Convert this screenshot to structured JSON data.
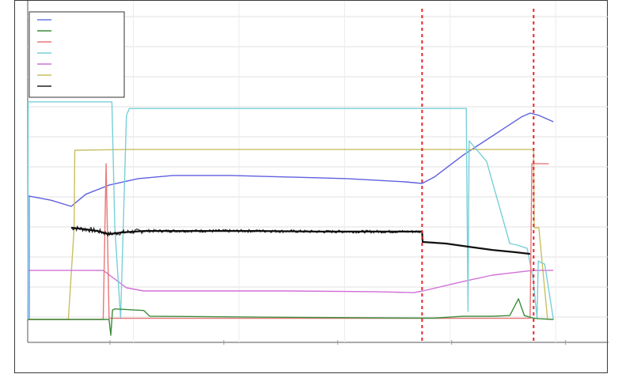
{
  "chart_data": {
    "type": "line",
    "title": "",
    "xlabel": "",
    "ylabel": "",
    "xlim": [
      0,
      100
    ],
    "ylim": [
      0,
      100
    ],
    "grid": true,
    "legend": {
      "placement": "top-left",
      "entries": [
        {
          "color": "#6a78e8",
          "label": ""
        },
        {
          "color": "#3c8c3c",
          "label": ""
        },
        {
          "color": "#e87878",
          "label": ""
        },
        {
          "color": "#78d0d8",
          "label": ""
        },
        {
          "color": "#d070d8",
          "label": ""
        },
        {
          "color": "#c8c060",
          "label": ""
        },
        {
          "color": "#202020",
          "label": ""
        }
      ]
    },
    "vlines": [
      {
        "x": 67.9,
        "color": "#e8262a",
        "style": "dashed"
      },
      {
        "x": 87.1,
        "color": "#e8262a",
        "style": "dashed"
      }
    ],
    "series": [
      {
        "color": "#5f5fe0",
        "x": [
          0,
          4,
          7.5,
          10,
          14,
          19,
          25,
          35,
          45,
          55,
          65,
          67.9,
          70,
          75,
          80,
          85,
          86.5,
          88,
          90.5
        ],
        "y": [
          53.9,
          52.0,
          49.3,
          54.6,
          58.6,
          61.4,
          62.8,
          62.8,
          62.1,
          61.4,
          60.0,
          59.3,
          62.1,
          71.7,
          80.0,
          88.3,
          90.0,
          89.0,
          86.2
        ]
      },
      {
        "color": "#c8c060",
        "x": [
          0,
          7,
          8,
          8.1,
          17,
          87.1,
          87.2,
          88,
          89.5
        ],
        "y": [
          0,
          0,
          40.0,
          73.8,
          74.1,
          74.1,
          40.0,
          40.0,
          0
        ]
      },
      {
        "color": "#d070d8",
        "x": [
          0,
          13,
          17,
          20,
          25,
          45,
          60,
          66.5,
          68,
          75,
          80,
          87,
          90.5
        ],
        "y": [
          21.4,
          21.4,
          13.8,
          12.4,
          12.4,
          12.4,
          12.1,
          11.7,
          12.4,
          16.6,
          19.3,
          21.4,
          21.4
        ]
      },
      {
        "color": "#78d0d8",
        "x": [
          0,
          0.1,
          14.5,
          15,
          16,
          17,
          17.5,
          75.5,
          75.8,
          76,
          79,
          83,
          84.3,
          86,
          87,
          87.7,
          87.9,
          89,
          90.5
        ],
        "y": [
          0,
          94.9,
          94.9,
          40,
          0.5,
          89.0,
          92.0,
          92.0,
          3.5,
          77.9,
          68.9,
          33.1,
          32.4,
          31.0,
          17.9,
          0.5,
          25.5,
          24.1,
          0
        ]
      },
      {
        "color": "#e87878",
        "x": [
          0,
          13,
          13.5,
          14,
          86.5,
          86.8,
          87.5,
          89.7
        ],
        "y": [
          0,
          0,
          67.9,
          0.5,
          0.5,
          67.9,
          67.9,
          67.9
        ]
      },
      {
        "color": "#3c8c3c",
        "x": [
          0,
          7,
          14,
          14.3,
          14.6,
          15,
          20,
          21,
          40,
          67.9,
          70,
          75,
          80,
          83,
          84.5,
          85.5,
          87,
          88,
          90.5
        ],
        "y": [
          0,
          0,
          0,
          -6.9,
          4.1,
          4.6,
          3.9,
          1.4,
          1.0,
          0.6,
          0.6,
          1.4,
          1.4,
          1.7,
          9.0,
          1.7,
          0.6,
          0.3,
          0
        ]
      },
      {
        "color": "#111111",
        "x": [
          7.5,
          10,
          12,
          14,
          16,
          20,
          30,
          40,
          50,
          60,
          67.9,
          68,
          72,
          76,
          80,
          84,
          86.5
        ],
        "y": [
          40.0,
          39.3,
          38.6,
          37.2,
          37.9,
          38.6,
          38.6,
          38.6,
          38.3,
          38.3,
          38.3,
          33.8,
          33.1,
          31.7,
          30.3,
          29.3,
          28.6
        ]
      }
    ]
  }
}
